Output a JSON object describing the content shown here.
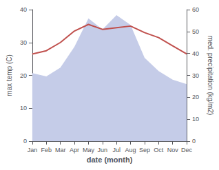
{
  "chart_data": {
    "type": "line",
    "xlabel": "date (month)",
    "ylabel": "max temp (C)",
    "y2label": "med. precipitation (kg/m2)",
    "categories": [
      "Jan",
      "Feb",
      "Mar",
      "Apr",
      "May",
      "Jun",
      "Jul",
      "Aug",
      "Sep",
      "Oct",
      "Nov",
      "Dec"
    ],
    "series": [
      {
        "type": "area",
        "axis": "y2",
        "color": "#c5cce8",
        "values": [
          31.0,
          29.5,
          33.5,
          43.0,
          56.0,
          51.0,
          57.5,
          53.0,
          38.0,
          32.0,
          28.0,
          26.0
        ]
      },
      {
        "type": "line",
        "color": "#c0504d",
        "values": [
          26.5,
          27.5,
          30.0,
          33.5,
          35.5,
          34.0,
          34.5,
          35.0,
          33.0,
          31.5,
          29.0,
          26.5
        ]
      }
    ],
    "ylim": [
      0,
      40
    ],
    "yticks": [
      0,
      10,
      20,
      30,
      40
    ],
    "y2lim": [
      0,
      60
    ],
    "y2ticks": [
      0,
      10,
      20,
      30,
      40,
      50,
      60
    ],
    "grid": false
  }
}
